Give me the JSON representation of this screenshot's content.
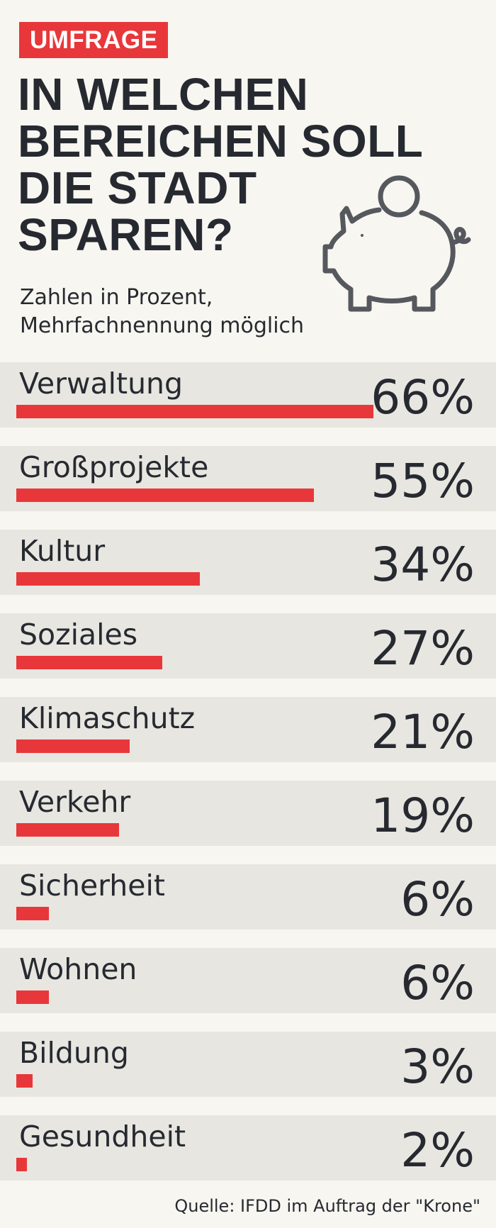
{
  "tag": "UMFRAGE",
  "title": "IN WELCHEN\nBEREICHEN SOLL\nDIE STADT\nSPAREN?",
  "subtitle": "Zahlen in Prozent,\nMehrfachnennung möglich",
  "source": "Quelle: IFDD im Auftrag der \"Krone\"",
  "icon": "piggy-bank-icon",
  "colors": {
    "accent": "#e8373a",
    "text": "#262a30",
    "background": "#f8f6f1",
    "row_band": "#e8e6e1",
    "icon_stroke": "#55585d"
  },
  "chart_data": {
    "type": "bar",
    "orientation": "horizontal",
    "title": "IN WELCHEN BEREICHEN SOLL DIE STADT SPAREN?",
    "subtitle": "Zahlen in Prozent, Mehrfachnennung möglich",
    "unit": "%",
    "categories": [
      "Verwaltung",
      "Großprojekte",
      "Kultur",
      "Soziales",
      "Klimaschutz",
      "Verkehr",
      "Sicherheit",
      "Wohnen",
      "Bildung",
      "Gesundheit"
    ],
    "values": [
      66,
      55,
      34,
      27,
      21,
      19,
      6,
      6,
      3,
      2
    ],
    "value_labels": [
      "66%",
      "55%",
      "34%",
      "27%",
      "21%",
      "19%",
      "6%",
      "6%",
      "3%",
      "2%"
    ],
    "xlim": [
      0,
      100
    ],
    "grid": false,
    "legend": "none"
  }
}
